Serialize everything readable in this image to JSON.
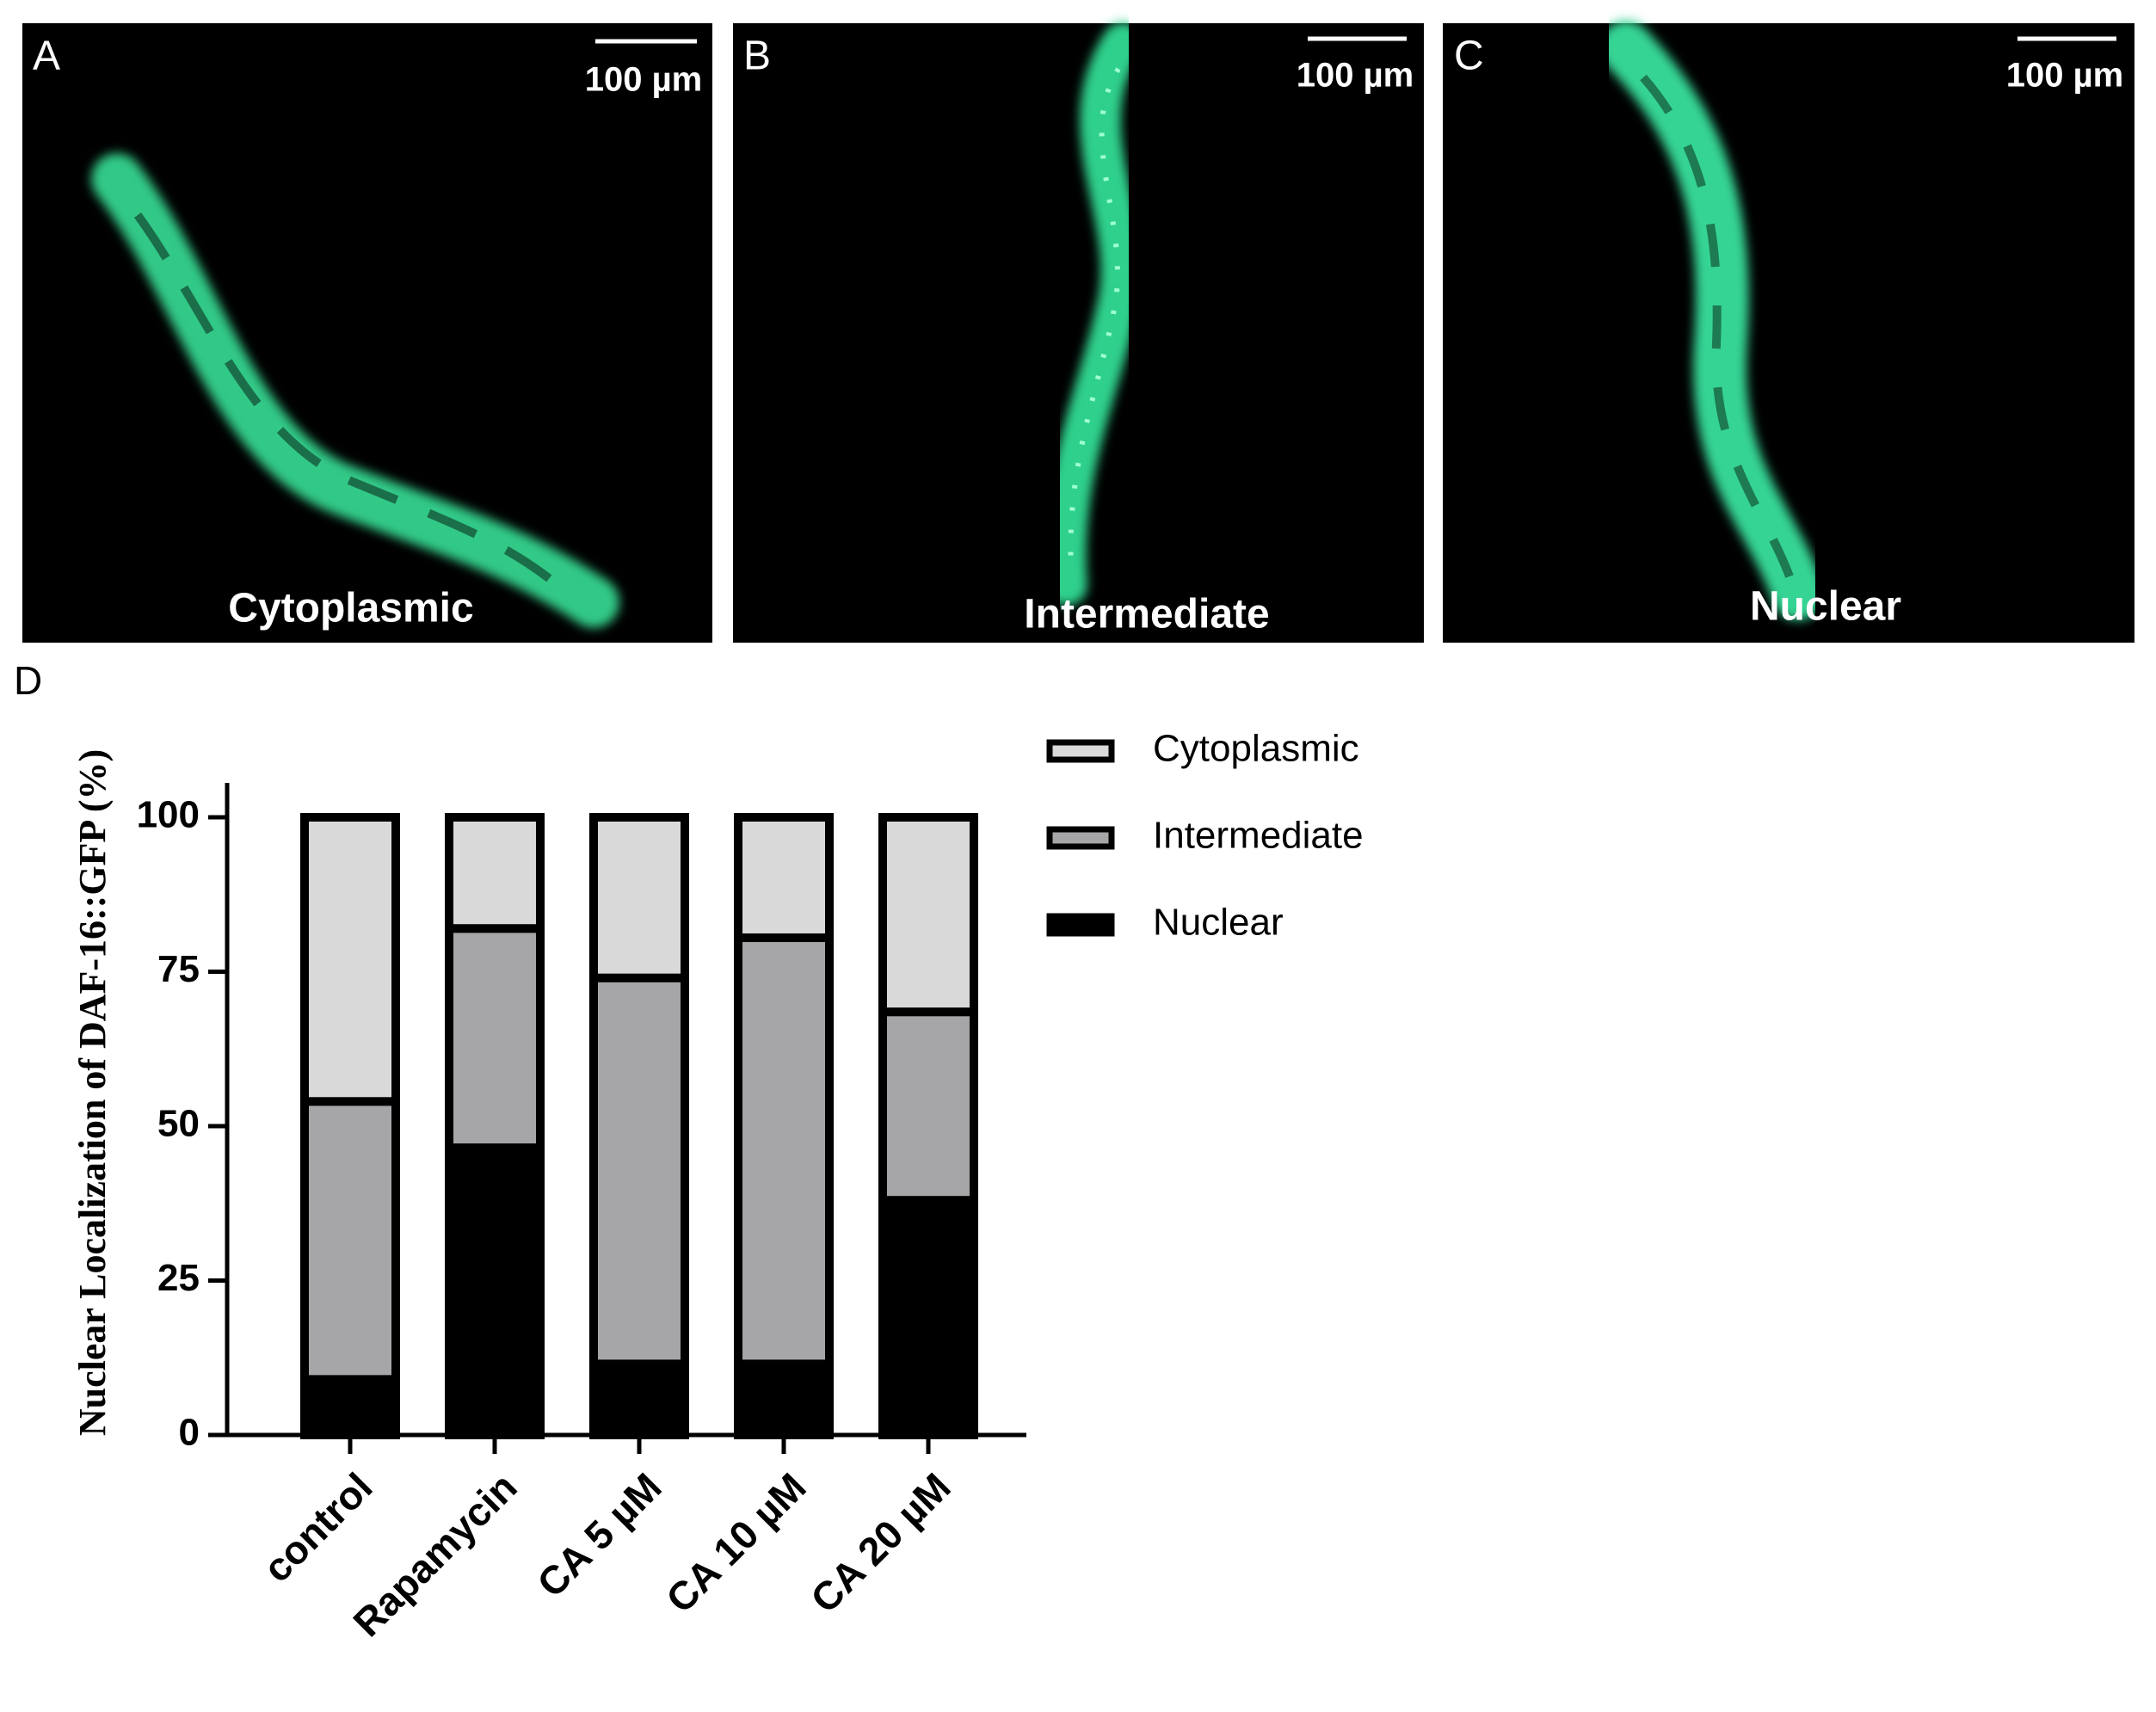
{
  "panels": [
    {
      "letter": "A",
      "scale_bar": "100 µm",
      "caption": "Cytoplasmic"
    },
    {
      "letter": "B",
      "scale_bar": "100 µm",
      "caption": "Intermediate"
    },
    {
      "letter": "C",
      "scale_bar": "100 µm",
      "caption": "Nuclear"
    }
  ],
  "chart_data": {
    "type": "bar",
    "stacked": true,
    "panel_label": "D",
    "y_label": "Nuclear  Localization of DAF-16::GFP (%)",
    "categories": [
      "control",
      "Rapamycin",
      "CA 5 µM",
      "CA 10 µM",
      "CA 20 µM"
    ],
    "series": [
      {
        "name": "Nuclear",
        "color": "#000000",
        "values": [
          9,
          46.5,
          11.5,
          11.5,
          38
        ]
      },
      {
        "name": "Intermediate",
        "color": "#a6a6a8",
        "values": [
          45,
          35.5,
          62.5,
          69,
          30.5
        ]
      },
      {
        "name": "Cytoplasmic",
        "color": "#d9d9d9",
        "values": [
          46,
          18,
          26,
          19.5,
          31.5
        ]
      }
    ],
    "ylim": [
      0,
      100
    ],
    "yticks": [
      0,
      25,
      50,
      75,
      100
    ]
  }
}
